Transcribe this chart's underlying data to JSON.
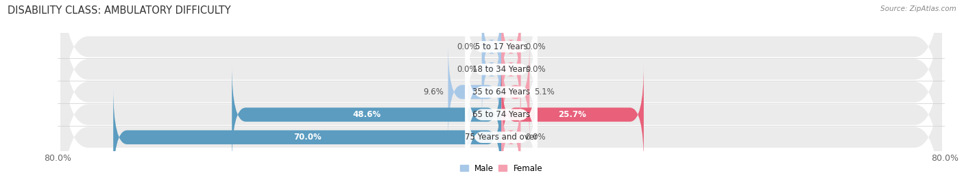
{
  "title": "DISABILITY CLASS: AMBULATORY DIFFICULTY",
  "source": "Source: ZipAtlas.com",
  "categories": [
    "5 to 17 Years",
    "18 to 34 Years",
    "35 to 64 Years",
    "65 to 74 Years",
    "75 Years and over"
  ],
  "male_values": [
    0.0,
    0.0,
    9.6,
    48.6,
    70.0
  ],
  "female_values": [
    0.0,
    0.0,
    5.1,
    25.7,
    0.0
  ],
  "male_color_light": "#a8c8e8",
  "male_color_dark": "#5b9cc0",
  "female_color_light": "#f4a0b0",
  "female_color_dark": "#e8607a",
  "row_bg_color": "#ebebeb",
  "x_min": -80.0,
  "x_max": 80.0,
  "title_fontsize": 10.5,
  "label_fontsize": 8.5,
  "tick_fontsize": 9,
  "bar_height": 0.62,
  "stub_size": 3.5,
  "legend_male": "Male",
  "legend_female": "Female"
}
